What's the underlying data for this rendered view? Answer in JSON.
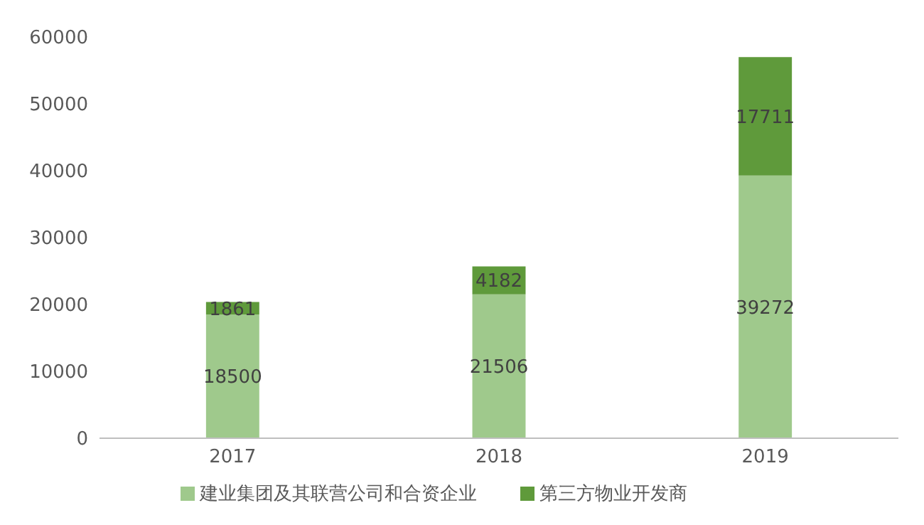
{
  "chart_data": {
    "type": "bar",
    "stacked": true,
    "categories": [
      "2017",
      "2018",
      "2019"
    ],
    "series": [
      {
        "name": "建业集团及其联营公司和合资企业",
        "color": "#9fc98c",
        "values": [
          18500,
          21506,
          39272
        ]
      },
      {
        "name": "第三方物业开发商",
        "color": "#5f9a3b",
        "values": [
          1861,
          4182,
          17711
        ]
      }
    ],
    "ylim": [
      0,
      60000
    ],
    "yticks": [
      0,
      10000,
      20000,
      30000,
      40000,
      50000,
      60000
    ],
    "data_labels": true,
    "legend": "bottom",
    "grid": false
  }
}
